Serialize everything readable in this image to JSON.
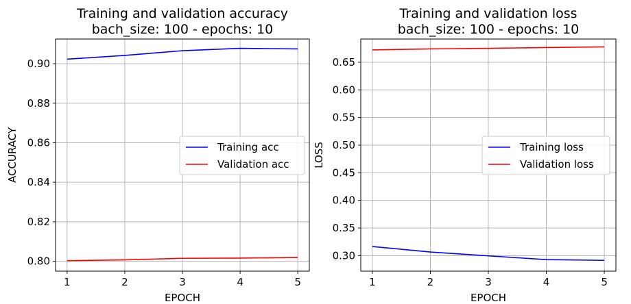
{
  "chart_data": [
    {
      "type": "line",
      "title": [
        "Training and validation accuracy",
        "bach_size: 100 - epochs: 10"
      ],
      "xlabel": "EPOCH",
      "ylabel": "ACCURACY",
      "x": [
        1,
        2,
        3,
        4,
        5
      ],
      "xlim": [
        0.8,
        5.2
      ],
      "ylim": [
        0.795,
        0.9125
      ],
      "xticks": [
        "1",
        "2",
        "3",
        "4",
        "5"
      ],
      "yticks": [
        "0.80",
        "0.82",
        "0.84",
        "0.86",
        "0.88",
        "0.90"
      ],
      "grid": true,
      "legend_position": "center-right",
      "series": [
        {
          "name": "Training acc",
          "color": "#0000ff",
          "values": [
            0.9023,
            0.9042,
            0.9066,
            0.9078,
            0.9075
          ]
        },
        {
          "name": "Validation acc",
          "color": "#ff0000",
          "values": [
            0.8003,
            0.8007,
            0.8015,
            0.8016,
            0.8019
          ]
        }
      ]
    },
    {
      "type": "line",
      "title": [
        "Training and validation loss",
        "bach_size: 100 - epochs: 10"
      ],
      "xlabel": "EPOCH",
      "ylabel": "LOSS",
      "x": [
        1,
        2,
        3,
        4,
        5
      ],
      "xlim": [
        0.8,
        5.2
      ],
      "ylim": [
        0.272,
        0.692
      ],
      "xticks": [
        "1",
        "2",
        "3",
        "4",
        "5"
      ],
      "yticks": [
        "0.30",
        "0.35",
        "0.40",
        "0.45",
        "0.50",
        "0.55",
        "0.60",
        "0.65"
      ],
      "grid": true,
      "legend_position": "center-right",
      "series": [
        {
          "name": "Training loss",
          "color": "#0000ff",
          "values": [
            0.3165,
            0.3066,
            0.2997,
            0.2928,
            0.2915
          ]
        },
        {
          "name": "Validation loss",
          "color": "#ff0000",
          "values": [
            0.6723,
            0.6741,
            0.6752,
            0.6766,
            0.6778
          ]
        }
      ]
    }
  ]
}
